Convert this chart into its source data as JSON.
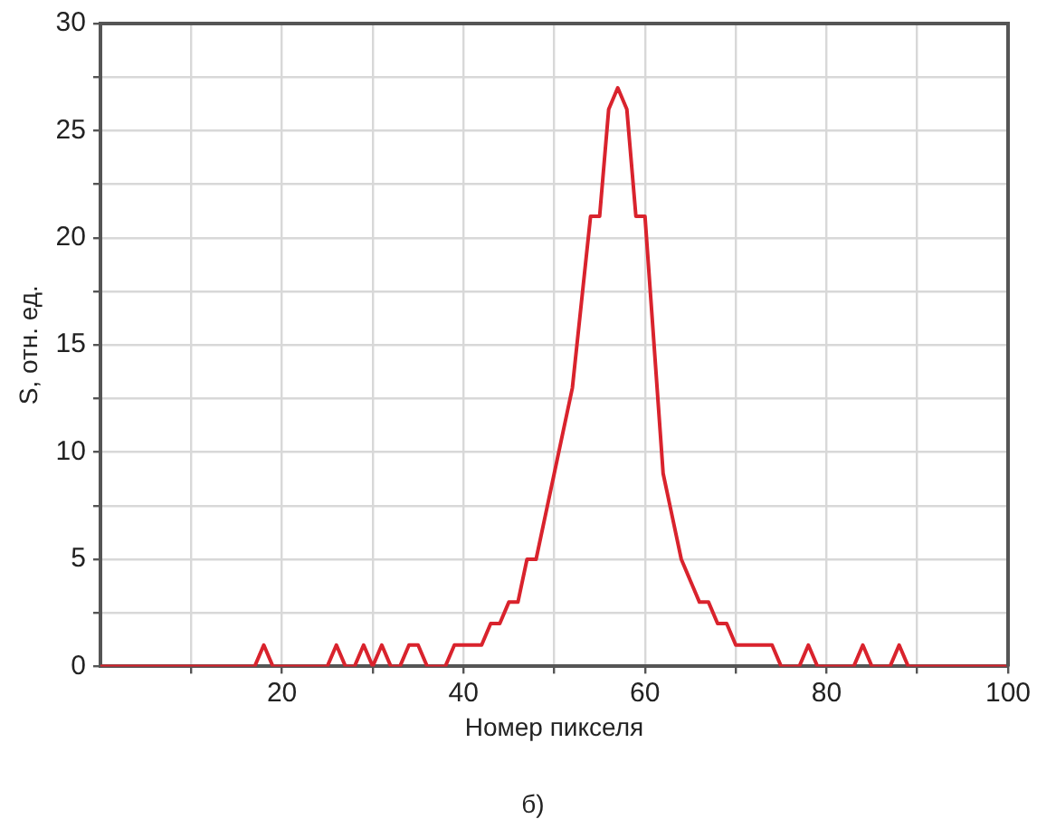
{
  "chart_data": {
    "type": "line",
    "xlabel": "Номер пикселя",
    "ylabel": "S, отн. ед.",
    "annotations": [
      "б)"
    ],
    "x": [
      0,
      1,
      2,
      3,
      4,
      5,
      6,
      7,
      8,
      9,
      10,
      11,
      12,
      13,
      14,
      15,
      16,
      17,
      18,
      19,
      20,
      21,
      22,
      23,
      24,
      25,
      26,
      27,
      28,
      29,
      30,
      31,
      32,
      33,
      34,
      35,
      36,
      37,
      38,
      39,
      40,
      41,
      42,
      43,
      44,
      45,
      46,
      47,
      48,
      49,
      50,
      51,
      52,
      53,
      54,
      55,
      56,
      57,
      58,
      59,
      60,
      61,
      62,
      63,
      64,
      65,
      66,
      67,
      68,
      69,
      70,
      71,
      72,
      73,
      74,
      75,
      76,
      77,
      78,
      79,
      80,
      81,
      82,
      83,
      84,
      85,
      86,
      87,
      88,
      89,
      90,
      91,
      92,
      93,
      94,
      95,
      96,
      97,
      98,
      99,
      100
    ],
    "series": [
      {
        "color": "#d9232d",
        "values": [
          0,
          0,
          0,
          0,
          0,
          0,
          0,
          0,
          0,
          0,
          0,
          0,
          0,
          0,
          0,
          0,
          0,
          0,
          1,
          0,
          0,
          0,
          0,
          0,
          0,
          0,
          1,
          0,
          0,
          1,
          0,
          1,
          0,
          0,
          1,
          1,
          0,
          0,
          0,
          1,
          1,
          1,
          1,
          2,
          2,
          3,
          3,
          5,
          5,
          7,
          9,
          11,
          13,
          17,
          21,
          21,
          26,
          27,
          26,
          21,
          21,
          15,
          9,
          7,
          5,
          4,
          3,
          3,
          2,
          2,
          1,
          1,
          1,
          1,
          1,
          0,
          0,
          0,
          1,
          0,
          0,
          0,
          0,
          0,
          1,
          0,
          0,
          0,
          1,
          0,
          0,
          0,
          0,
          0,
          0,
          0,
          0,
          0,
          0,
          0,
          0
        ]
      }
    ],
    "xlim": [
      0,
      100
    ],
    "xticks": [
      {
        "value": 10,
        "label": null
      },
      20,
      {
        "value": 30,
        "label": null
      },
      40,
      {
        "value": 50,
        "label": null
      },
      60,
      {
        "value": 70,
        "label": null
      },
      80,
      {
        "value": 90,
        "label": null
      },
      100
    ],
    "ylim": [
      0,
      30
    ],
    "yticks": [
      0,
      {
        "value": 2.5,
        "label": null
      },
      5,
      {
        "value": 7.5,
        "label": null
      },
      10,
      {
        "value": 12.5,
        "label": null
      },
      15,
      {
        "value": 17.5,
        "label": null
      },
      20,
      {
        "value": 22.5,
        "label": null
      },
      25,
      {
        "value": 27.5,
        "label": null
      },
      30
    ],
    "grid": true,
    "marker": "none",
    "line_style": "solid"
  }
}
